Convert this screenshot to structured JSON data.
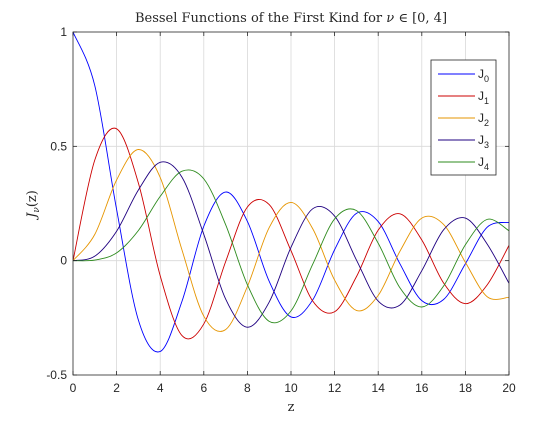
{
  "chart_data": {
    "type": "line",
    "title": "Bessel Functions of the First Kind for ν ∈ [0, 4]",
    "title_parts": {
      "prefix": "Bessel Functions of the First Kind for ",
      "nu": "ν",
      "in": " ∈ ",
      "interval": "[0, 4]"
    },
    "xlabel": "z",
    "ylabel": "J_ν(z)",
    "ylabel_parts": {
      "base": "J",
      "sub": "ν",
      "arg": "(z)"
    },
    "xlim": [
      0,
      20
    ],
    "ylim": [
      -0.5,
      1
    ],
    "xticks": [
      "0",
      "2",
      "4",
      "6",
      "8",
      "10",
      "12",
      "14",
      "16",
      "18",
      "20"
    ],
    "yticks": [
      "-0.5",
      "0",
      "0.5",
      "1"
    ],
    "xtick_values": [
      0,
      2,
      4,
      6,
      8,
      10,
      12,
      14,
      16,
      18,
      20
    ],
    "ytick_values": [
      -0.5,
      0,
      0.5,
      1
    ],
    "grid": true,
    "legend_position": "top-right",
    "series": [
      {
        "name": "J0",
        "legend_base": "J",
        "legend_sub": "0",
        "color": "#0000ff",
        "x": [
          0,
          1,
          2,
          3,
          4,
          5,
          6,
          7,
          8,
          9,
          10,
          11,
          12,
          13,
          14,
          15,
          16,
          17,
          18,
          19,
          20
        ],
        "y": [
          1.0,
          0.7652,
          0.2239,
          -0.2601,
          -0.3971,
          -0.1776,
          0.1506,
          0.3001,
          0.1717,
          -0.0903,
          -0.2459,
          -0.1712,
          0.0477,
          0.2069,
          0.1711,
          -0.0142,
          -0.1749,
          -0.1699,
          -0.0134,
          0.1466,
          0.167
        ]
      },
      {
        "name": "J1",
        "legend_base": "J",
        "legend_sub": "1",
        "color": "#cc0000",
        "x": [
          0,
          1,
          2,
          3,
          4,
          5,
          6,
          7,
          8,
          9,
          10,
          11,
          12,
          13,
          14,
          15,
          16,
          17,
          18,
          19,
          20
        ],
        "y": [
          0.0,
          0.4401,
          0.5767,
          0.3391,
          -0.066,
          -0.3276,
          -0.2767,
          -0.0047,
          0.2346,
          0.2453,
          0.0435,
          -0.1768,
          -0.2234,
          -0.0703,
          0.1334,
          0.2051,
          0.0904,
          -0.0977,
          -0.188,
          -0.1057,
          0.0668
        ]
      },
      {
        "name": "J2",
        "legend_base": "J",
        "legend_sub": "2",
        "color": "#e69500",
        "x": [
          0,
          1,
          2,
          3,
          4,
          5,
          6,
          7,
          8,
          9,
          10,
          11,
          12,
          13,
          14,
          15,
          16,
          17,
          18,
          19,
          20
        ],
        "y": [
          0.0,
          0.1149,
          0.3528,
          0.4861,
          0.3641,
          0.0466,
          -0.2429,
          -0.3014,
          -0.113,
          0.1448,
          0.2546,
          0.139,
          -0.0849,
          -0.2177,
          -0.152,
          0.0416,
          0.1862,
          0.1584,
          -0.0075,
          -0.1577,
          -0.1603
        ]
      },
      {
        "name": "J3",
        "legend_base": "J",
        "legend_sub": "3",
        "color": "#1f0080",
        "x": [
          0,
          1,
          2,
          3,
          4,
          5,
          6,
          7,
          8,
          9,
          10,
          11,
          12,
          13,
          14,
          15,
          16,
          17,
          18,
          19,
          20
        ],
        "y": [
          0.0,
          0.0196,
          0.1289,
          0.3091,
          0.4302,
          0.3648,
          0.1148,
          -0.1676,
          -0.2911,
          -0.1809,
          0.0584,
          0.2273,
          0.1951,
          0.0033,
          -0.1768,
          -0.194,
          -0.0438,
          0.1349,
          0.1863,
          0.0724,
          -0.0989
        ]
      },
      {
        "name": "J4",
        "legend_base": "J",
        "legend_sub": "4",
        "color": "#2e8b1e",
        "x": [
          0,
          1,
          2,
          3,
          4,
          5,
          6,
          7,
          8,
          9,
          10,
          11,
          12,
          13,
          14,
          15,
          16,
          17,
          18,
          19,
          20
        ],
        "y": [
          0.0,
          0.0025,
          0.034,
          0.132,
          0.2811,
          0.3912,
          0.3576,
          0.1578,
          -0.1054,
          -0.2655,
          -0.2196,
          -0.015,
          0.1825,
          0.2193,
          0.0762,
          -0.1192,
          -0.2026,
          -0.1107,
          0.0696,
          0.1806,
          0.1307
        ]
      }
    ]
  }
}
